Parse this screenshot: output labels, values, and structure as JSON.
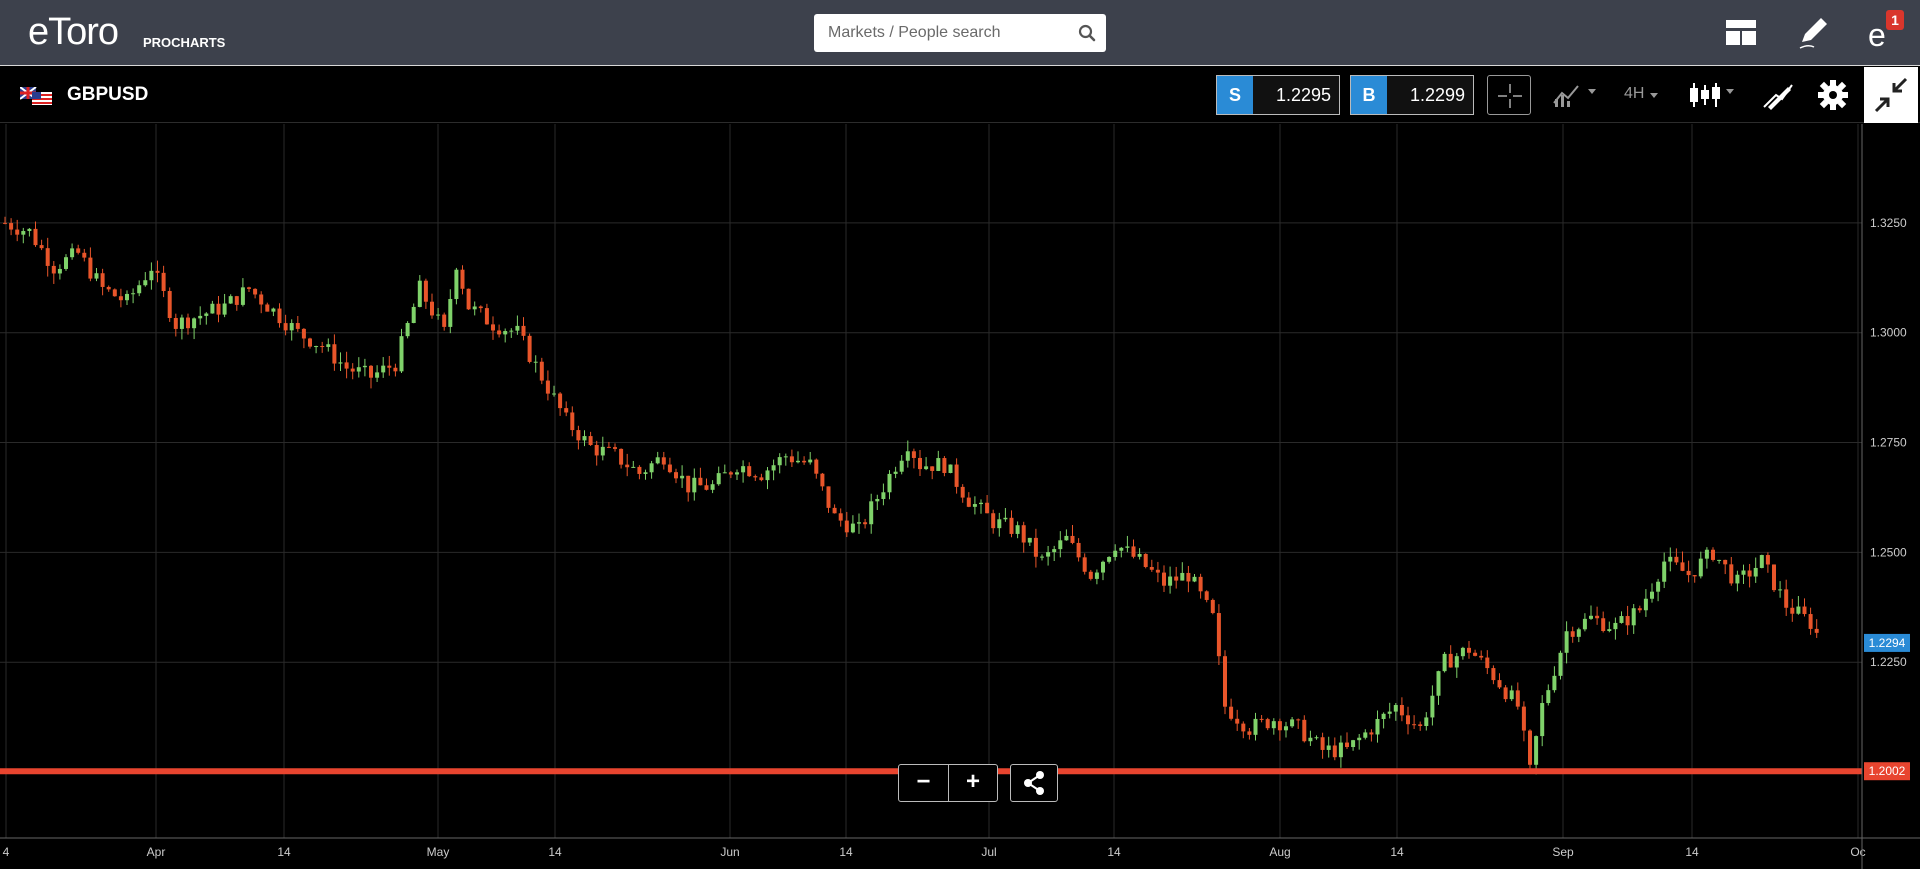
{
  "header": {
    "logo": "eToro",
    "logo_sub": "PROCHARTS",
    "search_placeholder": "Markets / People search",
    "notifications_count": "1"
  },
  "toolbar": {
    "symbol": "GBPUSD",
    "sell_label": "S",
    "sell_price": "1.2295",
    "buy_label": "B",
    "buy_price": "1.2299",
    "timeframe": "4H"
  },
  "colors": {
    "topbar": "#3d414c",
    "accent_blue": "#2a8bd6",
    "up_candle": "#7fd26a",
    "down_candle": "#e8552a",
    "alert_line": "#e8452f"
  },
  "chart_data": {
    "type": "candlestick",
    "symbol": "GBPUSD",
    "timeframe": "4H",
    "ylim": [
      1.185,
      1.3475
    ],
    "y_ticks": [
      "1.3250",
      "1.3000",
      "1.2750",
      "1.2500",
      "1.2250"
    ],
    "x_ticks": [
      "4",
      "Apr",
      "14",
      "May",
      "14",
      "Jun",
      "14",
      "Jul",
      "14",
      "Aug",
      "14",
      "Sep",
      "14",
      "Oc"
    ],
    "current_price_label": "1.2294",
    "current_price": 1.2294,
    "horizontal_line_label": "1.2002",
    "horizontal_line_price": 1.2002,
    "path": [
      [
        0,
        1.325
      ],
      [
        4,
        1.323
      ],
      [
        8,
        1.315
      ],
      [
        12,
        1.318
      ],
      [
        16,
        1.31
      ],
      [
        20,
        1.307
      ],
      [
        24,
        1.315
      ],
      [
        28,
        1.302
      ],
      [
        32,
        1.304
      ],
      [
        36,
        1.306
      ],
      [
        40,
        1.31
      ],
      [
        44,
        1.305
      ],
      [
        48,
        1.3
      ],
      [
        52,
        1.297
      ],
      [
        56,
        1.292
      ],
      [
        60,
        1.29
      ],
      [
        64,
        1.293
      ],
      [
        68,
        1.31
      ],
      [
        72,
        1.3
      ],
      [
        74,
        1.316
      ],
      [
        76,
        1.306
      ],
      [
        80,
        1.302
      ],
      [
        84,
        1.3
      ],
      [
        88,
        1.29
      ],
      [
        92,
        1.28
      ],
      [
        96,
        1.274
      ],
      [
        100,
        1.272
      ],
      [
        104,
        1.268
      ],
      [
        108,
        1.272
      ],
      [
        112,
        1.265
      ],
      [
        116,
        1.265
      ],
      [
        120,
        1.27
      ],
      [
        124,
        1.268
      ],
      [
        128,
        1.272
      ],
      [
        132,
        1.27
      ],
      [
        136,
        1.258
      ],
      [
        140,
        1.255
      ],
      [
        144,
        1.265
      ],
      [
        148,
        1.275
      ],
      [
        150,
        1.27
      ],
      [
        154,
        1.27
      ],
      [
        158,
        1.262
      ],
      [
        162,
        1.257
      ],
      [
        166,
        1.255
      ],
      [
        170,
        1.248
      ],
      [
        174,
        1.253
      ],
      [
        178,
        1.245
      ],
      [
        182,
        1.252
      ],
      [
        186,
        1.248
      ],
      [
        190,
        1.243
      ],
      [
        194,
        1.245
      ],
      [
        198,
        1.235
      ],
      [
        200,
        1.215
      ],
      [
        204,
        1.21
      ],
      [
        208,
        1.212
      ],
      [
        212,
        1.21
      ],
      [
        216,
        1.205
      ],
      [
        220,
        1.205
      ],
      [
        224,
        1.21
      ],
      [
        228,
        1.215
      ],
      [
        232,
        1.21
      ],
      [
        236,
        1.225
      ],
      [
        240,
        1.228
      ],
      [
        244,
        1.222
      ],
      [
        248,
        1.215
      ],
      [
        250,
        1.2
      ],
      [
        252,
        1.215
      ],
      [
        256,
        1.232
      ],
      [
        260,
        1.235
      ],
      [
        264,
        1.233
      ],
      [
        268,
        1.237
      ],
      [
        272,
        1.248
      ],
      [
        276,
        1.245
      ],
      [
        280,
        1.25
      ],
      [
        284,
        1.243
      ],
      [
        288,
        1.248
      ],
      [
        292,
        1.238
      ],
      [
        296,
        1.234
      ],
      [
        298,
        1.229
      ]
    ],
    "n_candles": 298,
    "grid": true
  }
}
